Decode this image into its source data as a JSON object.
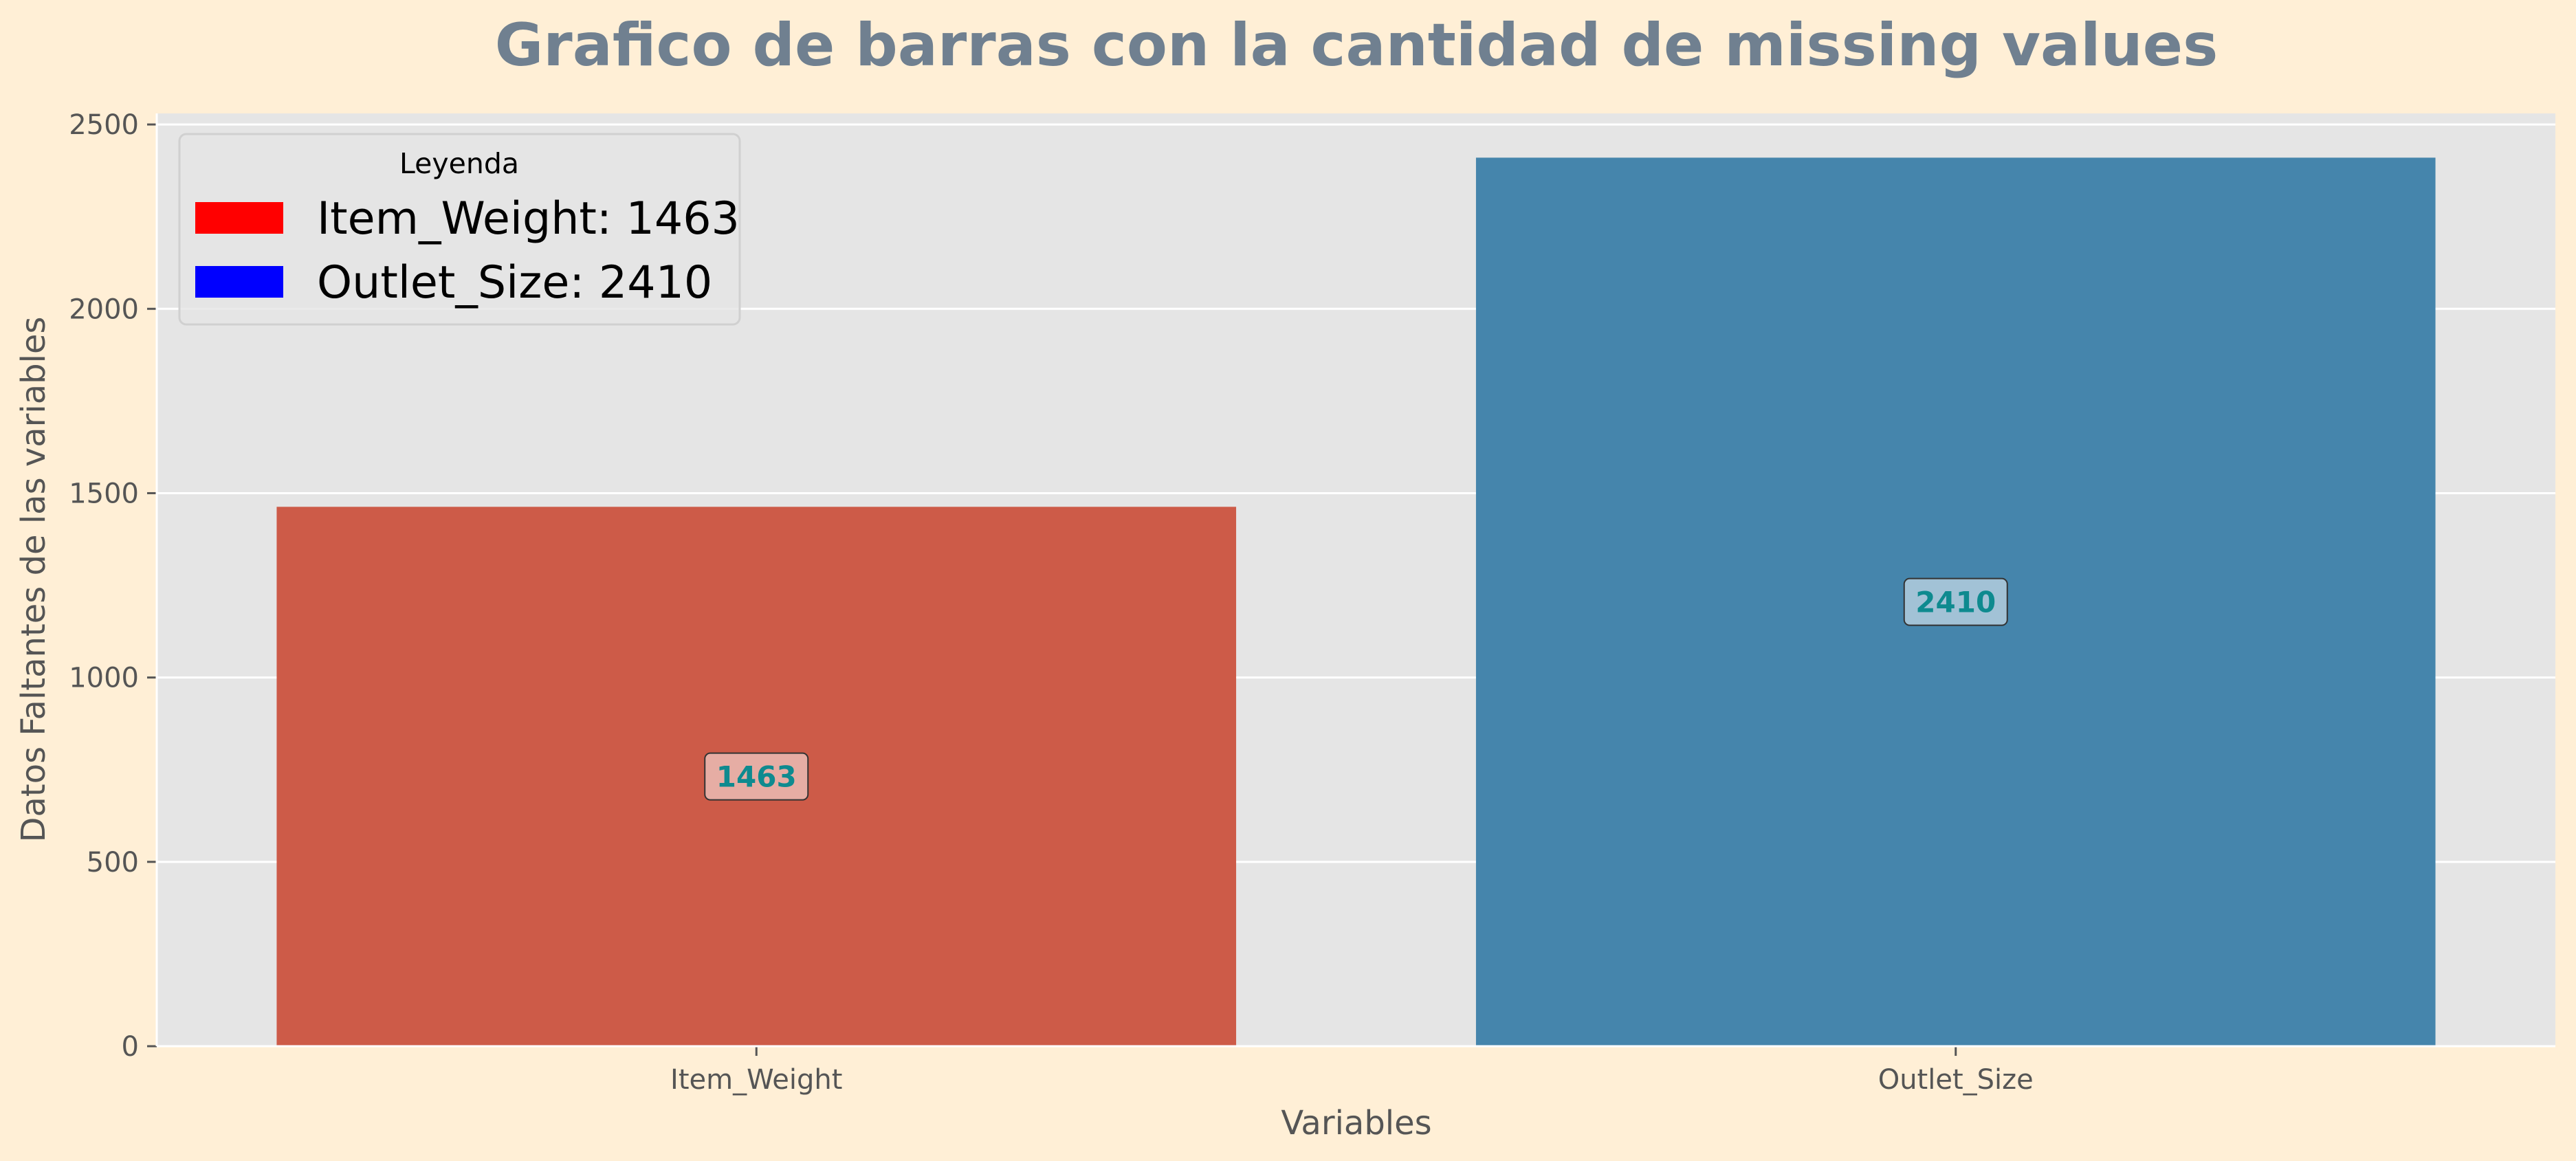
{
  "chart_data": {
    "type": "bar",
    "title": "Grafico de barras con la cantidad de missing values",
    "xlabel": "Variables",
    "ylabel": "Datos Faltantes de las variables",
    "categories": [
      "Item_Weight",
      "Outlet_Size"
    ],
    "values": [
      1463,
      2410
    ],
    "bar_colors": [
      "#cd5b48",
      "#4585ac"
    ],
    "data_labels": [
      "1463",
      "2410"
    ],
    "data_label_color": "#0e8a8f",
    "ylim": [
      0,
      2530
    ],
    "yticks": [
      0,
      500,
      1000,
      1500,
      2000,
      2500
    ],
    "ytick_labels": [
      "0",
      "500",
      "1000",
      "1500",
      "2000",
      "2500"
    ],
    "grid": true,
    "plot_background": "#e5e5e5",
    "legend": {
      "title": "Leyenda",
      "placement": "top-left",
      "entries": [
        {
          "label": "Item_Weight: 1463",
          "color": "#ff0000"
        },
        {
          "label": "Outlet_Size: 2410",
          "color": "#0000ff"
        }
      ]
    }
  }
}
